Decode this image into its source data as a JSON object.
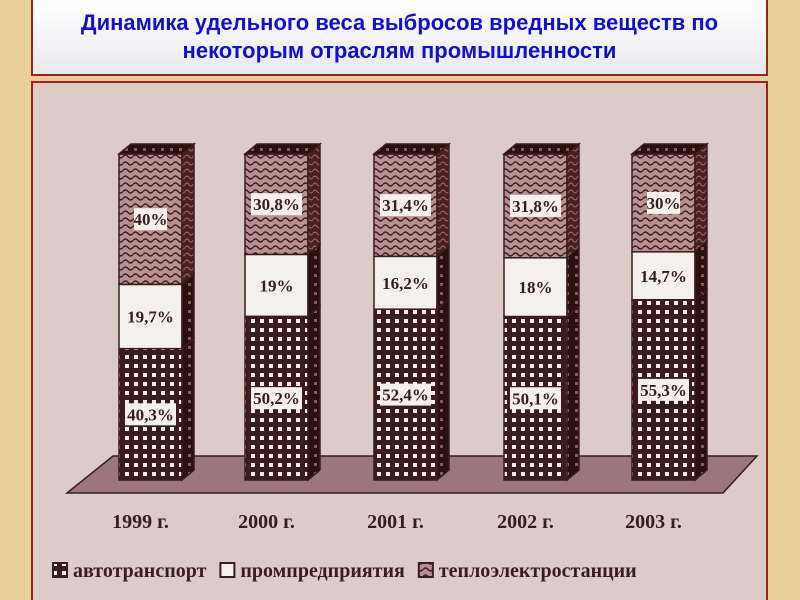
{
  "title": "Динамика удельного веса выбросов вредных веществ по некоторым отраслям промышленности",
  "chart_data": {
    "type": "bar",
    "stacked": true,
    "title": "Динамика удельного веса выбросов вредных веществ по некоторым отраслям промышленности",
    "categories": [
      "1999 г.",
      "2000 г.",
      "2001 г.",
      "2002 г.",
      "2003 г."
    ],
    "series": [
      {
        "name": "автотранспорт",
        "values": [
          40.3,
          50.2,
          52.4,
          50.1,
          55.3
        ],
        "labels": [
          "40,3%",
          "50,2%",
          "52,4%",
          "50,1%",
          "55,3%"
        ],
        "pattern": "checker"
      },
      {
        "name": "промпредприятия",
        "values": [
          19.7,
          19,
          16.2,
          18,
          14.7
        ],
        "labels": [
          "19,7%",
          "19%",
          "16,2%",
          "18%",
          "14,7%"
        ],
        "pattern": "white"
      },
      {
        "name": "теплоэлектростанции",
        "values": [
          40,
          30.8,
          31.4,
          31.8,
          30
        ],
        "labels": [
          "40%",
          "30,8%",
          "31,4%",
          "31,8%",
          "30%"
        ],
        "pattern": "waves"
      }
    ],
    "ylim": [
      0,
      100
    ],
    "legend_position": "bottom",
    "grid": false,
    "colors": {
      "ink": "#3a1c1c",
      "paper": "#dccbc6"
    }
  }
}
